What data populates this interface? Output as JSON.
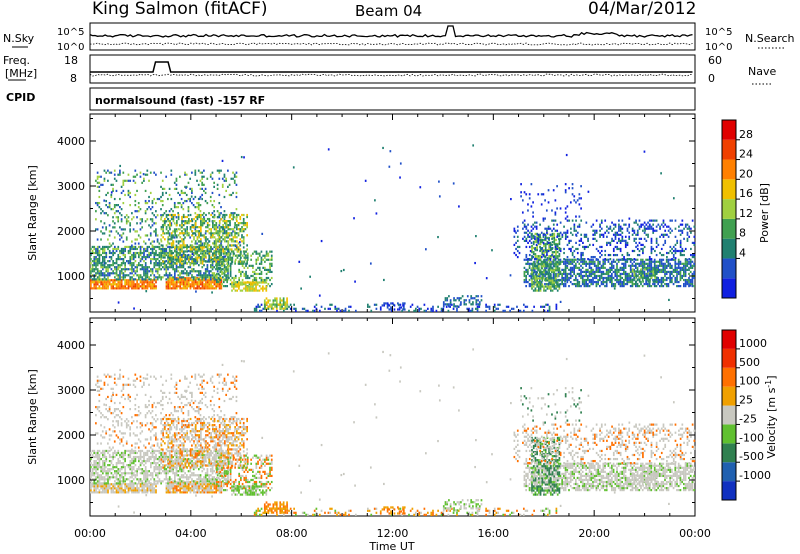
{
  "header": {
    "station": "King Salmon (fitACF)",
    "beam": "Beam 04",
    "date": "04/Mar/2012"
  },
  "noise_panel": {
    "left_label": "N.Sky",
    "right_label": "N.Search",
    "ticks": [
      "10^5",
      "10^0"
    ]
  },
  "freq_panel": {
    "left_label_line1": "Freq.",
    "left_label_line2": "[MHz]",
    "left_ticks": [
      "18",
      "8"
    ],
    "right_label": "Nave",
    "right_ticks": [
      "60",
      "0"
    ]
  },
  "cpid_panel": {
    "label": "CPID",
    "text": "normalsound (fast) -157 RF"
  },
  "chart_data": [
    {
      "type": "heatmap",
      "name": "power",
      "ylabel": "Slant Range [km]",
      "ylim": [
        200,
        4600
      ],
      "yticks": [
        1000,
        2000,
        3000,
        4000
      ],
      "colorbar_label": "Power [dB]",
      "colorbar_ticks": [
        "28",
        "24",
        "20",
        "16",
        "12",
        "8",
        "4"
      ],
      "colors": [
        "#1020e0",
        "#2050c8",
        "#208070",
        "#40a050",
        "#a0d040",
        "#f0c000",
        "#ff8000",
        "#f04000",
        "#e00000"
      ]
    },
    {
      "type": "heatmap",
      "name": "velocity",
      "ylabel": "Slant Range [km]",
      "ylim": [
        200,
        4600
      ],
      "yticks": [
        1000,
        2000,
        3000,
        4000
      ],
      "colorbar_label": "Velocity [m s^-1]",
      "colorbar_ticks": [
        "1000",
        "500",
        "100",
        "25",
        "-25",
        "-100",
        "-500",
        "-1000"
      ],
      "colors": [
        "#1030c0",
        "#2060b0",
        "#308050",
        "#60c030",
        "#c8c8c0",
        "#f0a000",
        "#ff7000",
        "#f03000",
        "#e00000"
      ]
    }
  ],
  "xaxis": {
    "ticks": [
      "00:00",
      "04:00",
      "08:00",
      "12:00",
      "16:00",
      "20:00",
      "00:00"
    ],
    "label": "Time UT"
  }
}
